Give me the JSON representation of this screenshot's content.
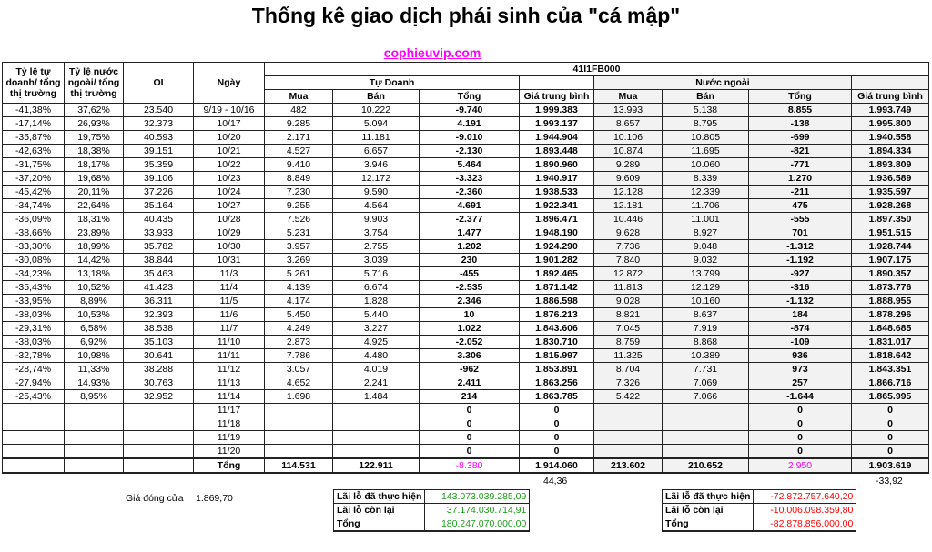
{
  "title": "Thống kê giao dịch phái sinh của \"cá mập\"",
  "site": "cophieuvip.com",
  "colors": {
    "positive": "#1a9e1a",
    "negative": "#ff0000",
    "highlight": "#ff00ff",
    "shade": "#f2f2f2"
  },
  "header": {
    "td_ratio": "Tỷ lệ tự doanh/ tổng thị trường",
    "nn_ratio": "Tỷ lệ nước ngoài/ tổng thị trường",
    "oi": "OI",
    "date": "Ngày",
    "contract": "41I1FB000",
    "tu_doanh": "Tự Doanh",
    "nuoc_ngoai": "Nước ngoài",
    "buy": "Mua",
    "sell": "Bán",
    "total": "Tổng",
    "avg": "Giá trung bình"
  },
  "rows": [
    [
      "-41,38%",
      "37,62%",
      "23.540",
      "9/19 - 10/16",
      "482",
      "10.222",
      "-9.740",
      "1.999.383",
      "13.993",
      "5.138",
      "8.855",
      "1.993.749"
    ],
    [
      "-17,14%",
      "26,93%",
      "32.373",
      "10/17",
      "9.285",
      "5.094",
      "4.191",
      "1.993.137",
      "8.657",
      "8.795",
      "-138",
      "1.995.800"
    ],
    [
      "-35,87%",
      "19,75%",
      "40.593",
      "10/20",
      "2.171",
      "11.181",
      "-9.010",
      "1.944.904",
      "10.106",
      "10.805",
      "-699",
      "1.940.558"
    ],
    [
      "-42,63%",
      "18,38%",
      "39.151",
      "10/21",
      "4.527",
      "6.657",
      "-2.130",
      "1.893.448",
      "10.874",
      "11.695",
      "-821",
      "1.894.334"
    ],
    [
      "-31,75%",
      "18,17%",
      "35.359",
      "10/22",
      "9.410",
      "3.946",
      "5.464",
      "1.890.960",
      "9.289",
      "10.060",
      "-771",
      "1.893.809"
    ],
    [
      "-37,20%",
      "19,68%",
      "39.106",
      "10/23",
      "8.849",
      "12.172",
      "-3.323",
      "1.940.917",
      "9.609",
      "8.339",
      "1.270",
      "1.936.589"
    ],
    [
      "-45,42%",
      "20,11%",
      "37.226",
      "10/24",
      "7.230",
      "9.590",
      "-2.360",
      "1.938.533",
      "12.128",
      "12.339",
      "-211",
      "1.935.597"
    ],
    [
      "-34,74%",
      "22,64%",
      "35.164",
      "10/27",
      "9.255",
      "4.564",
      "4.691",
      "1.922.341",
      "12.181",
      "11.706",
      "475",
      "1.928.268"
    ],
    [
      "-36,09%",
      "18,31%",
      "40.435",
      "10/28",
      "7.526",
      "9.903",
      "-2.377",
      "1.896.471",
      "10.446",
      "11.001",
      "-555",
      "1.897.350"
    ],
    [
      "-38,66%",
      "23,89%",
      "33.933",
      "10/29",
      "5.231",
      "3.754",
      "1.477",
      "1.948.190",
      "9.628",
      "8.927",
      "701",
      "1.951.515"
    ],
    [
      "-33,30%",
      "18,99%",
      "35.782",
      "10/30",
      "3.957",
      "2.755",
      "1.202",
      "1.924.290",
      "7.736",
      "9.048",
      "-1.312",
      "1.928.744"
    ],
    [
      "-30,08%",
      "14,42%",
      "38.844",
      "10/31",
      "3.269",
      "3.039",
      "230",
      "1.901.282",
      "7.840",
      "9.032",
      "-1.192",
      "1.907.175"
    ],
    [
      "-34,23%",
      "13,18%",
      "35.463",
      "11/3",
      "5.261",
      "5.716",
      "-455",
      "1.892.465",
      "12.872",
      "13.799",
      "-927",
      "1.890.357"
    ],
    [
      "-35,43%",
      "10,52%",
      "41.423",
      "11/4",
      "4.139",
      "6.674",
      "-2.535",
      "1.871.142",
      "11.813",
      "12.129",
      "-316",
      "1.873.776"
    ],
    [
      "-33,95%",
      "8,89%",
      "36.311",
      "11/5",
      "4.174",
      "1.828",
      "2.346",
      "1.886.598",
      "9.028",
      "10.160",
      "-1.132",
      "1.888.955"
    ],
    [
      "-38,03%",
      "10,53%",
      "32.393",
      "11/6",
      "5.450",
      "5.440",
      "10",
      "1.876.213",
      "8.821",
      "8.637",
      "184",
      "1.878.296"
    ],
    [
      "-29,31%",
      "6,58%",
      "38.538",
      "11/7",
      "4.249",
      "3.227",
      "1.022",
      "1.843.606",
      "7.045",
      "7.919",
      "-874",
      "1.848.685"
    ],
    [
      "-38,03%",
      "6,92%",
      "35.103",
      "11/10",
      "2.873",
      "4.925",
      "-2.052",
      "1.830.710",
      "8.759",
      "8.868",
      "-109",
      "1.831.017"
    ],
    [
      "-32,78%",
      "10,98%",
      "30.641",
      "11/11",
      "7.786",
      "4.480",
      "3.306",
      "1.815.997",
      "11.325",
      "10.389",
      "936",
      "1.818.642"
    ],
    [
      "-28,74%",
      "11,33%",
      "38.288",
      "11/12",
      "3.057",
      "4.019",
      "-962",
      "1.853.891",
      "8.704",
      "7.731",
      "973",
      "1.843.351"
    ],
    [
      "-27,94%",
      "14,93%",
      "30.763",
      "11/13",
      "4.652",
      "2.241",
      "2.411",
      "1.863.256",
      "7.326",
      "7.069",
      "257",
      "1.866.716"
    ],
    [
      "-25,43%",
      "8,95%",
      "32.952",
      "11/14",
      "1.698",
      "1.484",
      "214",
      "1.863.785",
      "5.422",
      "7.066",
      "-1.644",
      "1.865.995"
    ],
    [
      "",
      "",
      "",
      "11/17",
      "",
      "",
      "0",
      "0",
      "",
      "",
      "0",
      "0"
    ],
    [
      "",
      "",
      "",
      "11/18",
      "",
      "",
      "0",
      "0",
      "",
      "",
      "0",
      "0"
    ],
    [
      "",
      "",
      "",
      "11/19",
      "",
      "",
      "0",
      "0",
      "",
      "",
      "0",
      "0"
    ],
    [
      "",
      "",
      "",
      "11/20",
      "",
      "",
      "0",
      "0",
      "",
      "",
      "0",
      "0"
    ]
  ],
  "total_row": [
    "",
    "",
    "",
    "Tổng",
    "114.531",
    "122.911",
    "-8.380",
    "1.914.060",
    "213.602",
    "210.652",
    "2.950",
    "1.903.619"
  ],
  "below": {
    "td_diff": "44,36",
    "nn_diff": "-33,92",
    "close_label": "Giá đóng cửa",
    "close_value": "1.869,70"
  },
  "pl_td": [
    {
      "label": "Lãi lỗ đã thực hiện",
      "value": "143.073.039.285,09"
    },
    {
      "label": "Lãi lỗ còn lại",
      "value": "37.174.030.714,91"
    },
    {
      "label": "Tổng",
      "value": "180.247.070.000,00"
    }
  ],
  "pl_nn": [
    {
      "label": "Lãi lỗ đã thực hiện",
      "value": "-72.872.757.640,20"
    },
    {
      "label": "Lãi lỗ còn lại",
      "value": "-10.006.098.359,80"
    },
    {
      "label": "Tổng",
      "value": "-82.878.856.000,00"
    }
  ]
}
